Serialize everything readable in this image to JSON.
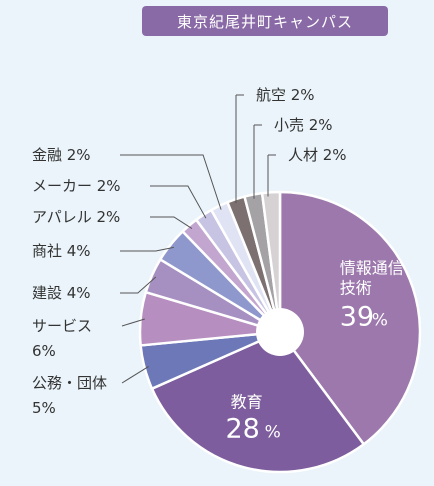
{
  "badge": "東京紀尾井町キャンパス",
  "chart_data": {
    "type": "pie",
    "title": "東京紀尾井町キャンパス",
    "start_angle_deg": 0,
    "direction": "clockwise",
    "donut_hole": true,
    "slices": [
      {
        "label": "情報通信技術",
        "value": 39,
        "display": "39%",
        "color": "#9c78ac",
        "label_style": "inside"
      },
      {
        "label": "教育",
        "value": 28,
        "display": "28%",
        "color": "#7d5d9d",
        "label_style": "inside"
      },
      {
        "label": "公務・団体",
        "value": 5,
        "display": "5%",
        "color": "#6d78b8",
        "label_style": "outside-left"
      },
      {
        "label": "サービス",
        "value": 6,
        "display": "6%",
        "color": "#b78ec0",
        "label_style": "outside-left"
      },
      {
        "label": "建設",
        "value": 4,
        "display": "4%",
        "color": "#a690c2",
        "label_style": "outside-left"
      },
      {
        "label": "商社",
        "value": 4,
        "display": "4%",
        "color": "#8f98cc",
        "label_style": "outside-left"
      },
      {
        "label": "アパレル",
        "value": 2,
        "display": "2%",
        "color": "#c3a6d0",
        "label_style": "outside-left"
      },
      {
        "label": "メーカー",
        "value": 2,
        "display": "2%",
        "color": "#c7c3e3",
        "label_style": "outside-left"
      },
      {
        "label": "金融",
        "value": 2,
        "display": "2%",
        "color": "#dfe3f4",
        "label_style": "outside-left"
      },
      {
        "label": "航空",
        "value": 2,
        "display": "2%",
        "color": "#7c7070",
        "label_style": "outside-right"
      },
      {
        "label": "小売",
        "value": 2,
        "display": "2%",
        "color": "#a5a2a6",
        "label_style": "outside-right"
      },
      {
        "label": "人材",
        "value": 2,
        "display": "2%",
        "color": "#d6d2d4",
        "label_style": "outside-right"
      }
    ]
  }
}
